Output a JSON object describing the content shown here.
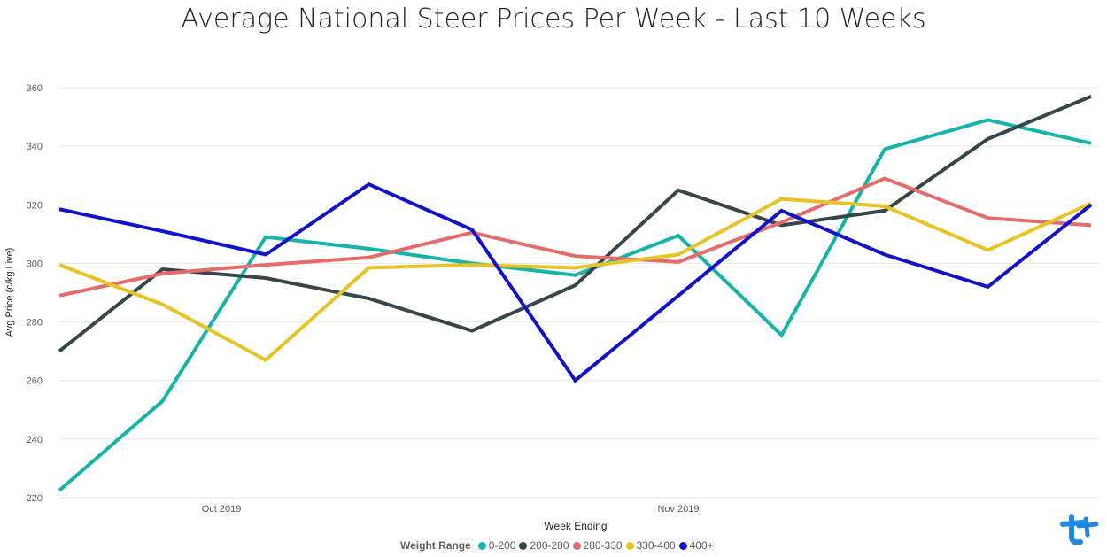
{
  "title": "Average National Steer Prices Per Week - Last 10 Weeks",
  "legend_title": "Weight Range",
  "chart_data": {
    "type": "line",
    "title": "Average National Steer Prices Per Week - Last 10 Weeks",
    "xlabel": "Week Ending",
    "ylabel": "Avg Price (c/kg Live)",
    "ylim": [
      220,
      360
    ],
    "yticks": [
      220,
      240,
      260,
      280,
      300,
      320,
      340,
      360
    ],
    "x_tick_labels": [
      "Oct 2019",
      "Nov 2019"
    ],
    "x": [
      "2019-09-20",
      "2019-09-27",
      "2019-10-04",
      "2019-10-11",
      "2019-10-18",
      "2019-10-25",
      "2019-11-01",
      "2019-11-08",
      "2019-11-15",
      "2019-11-22",
      "2019-11-29"
    ],
    "x_tick_dates": [
      "2019-10-01",
      "2019-11-01"
    ],
    "grid": true,
    "legend_position": "bottom-center",
    "series": [
      {
        "name": "0-200",
        "color": "#16B3A8",
        "values": [
          222.5,
          253.0,
          309.0,
          305.0,
          300.0,
          296.0,
          309.5,
          275.5,
          339.0,
          349.0,
          341.0
        ]
      },
      {
        "name": "200-280",
        "color": "#374649",
        "values": [
          270.0,
          298.0,
          295.0,
          288.0,
          277.0,
          292.5,
          325.0,
          313.0,
          318.0,
          342.5,
          357.0
        ]
      },
      {
        "name": "280-330",
        "color": "#E66C6C",
        "values": [
          289.0,
          296.5,
          299.5,
          302.0,
          310.5,
          302.5,
          300.5,
          314.0,
          329.0,
          315.5,
          313.0
        ]
      },
      {
        "name": "330-400",
        "color": "#E8C326",
        "values": [
          299.5,
          286.0,
          267.0,
          298.5,
          299.5,
          298.5,
          303.0,
          322.0,
          319.5,
          304.5,
          320.5
        ]
      },
      {
        "name": "400+",
        "color": "#1212C8",
        "values": [
          318.5,
          311.0,
          303.0,
          327.0,
          311.5,
          260.0,
          289.0,
          318.0,
          303.0,
          292.0,
          320.0
        ]
      }
    ]
  }
}
